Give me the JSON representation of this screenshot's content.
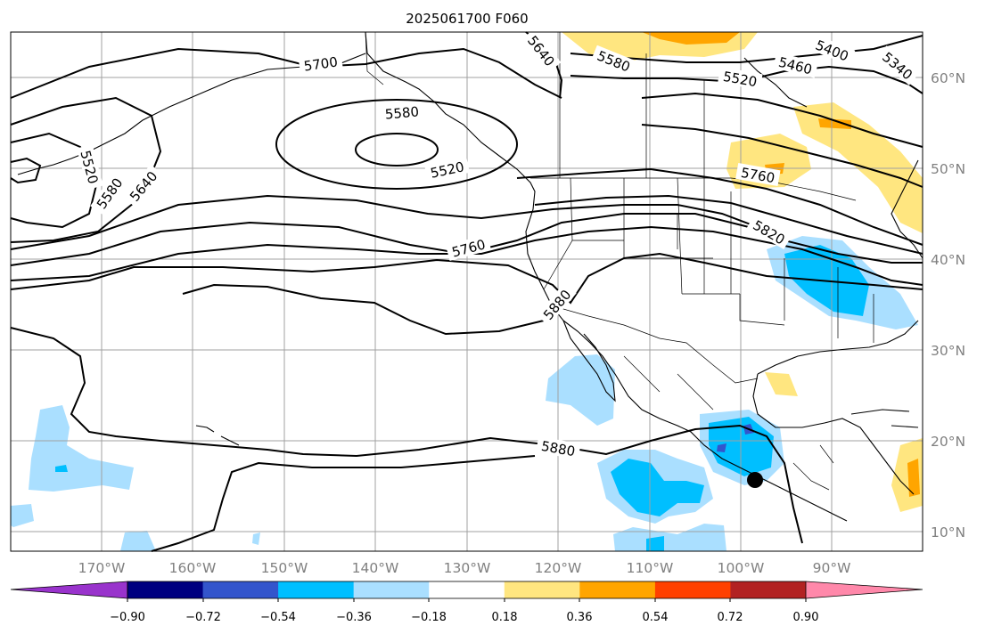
{
  "map": {
    "title": "2025061700 F060",
    "lon_labels": [
      "170°W",
      "160°W",
      "150°W",
      "140°W",
      "130°W",
      "120°W",
      "110°W",
      "100°W",
      "90°W"
    ],
    "lat_labels": [
      "60°N",
      "50°N",
      "40°N",
      "30°N",
      "20°N",
      "10°N"
    ],
    "contour_labels": [
      "5700",
      "5640",
      "5580",
      "5460",
      "5400",
      "5340",
      "5520",
      "5580",
      "5520",
      "5520",
      "5580",
      "5640",
      "5760",
      "5760",
      "5820",
      "5880",
      "5880"
    ],
    "storm_marker": "storm-position-marker"
  },
  "colorbar": {
    "colors": [
      "#9933cc",
      "#000080",
      "#3355cc",
      "#00bfff",
      "#aadfff",
      "#ffffff",
      "#ffe680",
      "#ffa500",
      "#ff4000",
      "#b22222",
      "#ff88aa"
    ],
    "tick_labels": [
      "−0.90",
      "−0.72",
      "−0.54",
      "−0.36",
      "−0.18",
      "0.18",
      "0.36",
      "0.54",
      "0.72",
      "0.90"
    ]
  },
  "styles": {
    "grid_color": "#a0a0a0",
    "axis_label_color": "#808080",
    "contour_color": "#000000",
    "light_blue": "#aadfff",
    "blue": "#00bfff",
    "yellow": "#ffe680",
    "orange": "#ffa500"
  }
}
